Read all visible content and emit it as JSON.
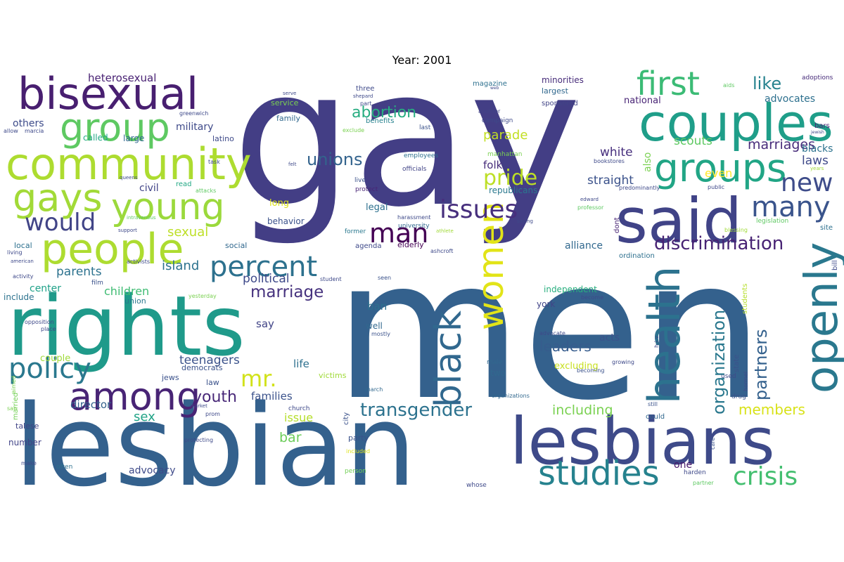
{
  "figure": {
    "title": "Year: 2001"
  },
  "chart_data": {
    "type": "wordcloud",
    "title": "Year: 2001",
    "colormap": "viridis",
    "background": "#ffffff",
    "words": [
      {
        "text": "gay",
        "color": "#433e85"
      },
      {
        "text": "men",
        "color": "#34618d"
      },
      {
        "text": "lesbian",
        "color": "#34618d"
      },
      {
        "text": "rights",
        "color": "#1f9a8a"
      },
      {
        "text": "lesbians",
        "color": "#3e4a89"
      },
      {
        "text": "said",
        "color": "#404387"
      },
      {
        "text": "couples",
        "color": "#1f9e89"
      },
      {
        "text": "community",
        "color": "#addc30"
      },
      {
        "text": "bisexual",
        "color": "#481f70"
      },
      {
        "text": "people",
        "color": "#addc30"
      },
      {
        "text": "among",
        "color": "#482475"
      },
      {
        "text": "openly",
        "color": "#2a788e"
      },
      {
        "text": "health",
        "color": "#2c728e"
      },
      {
        "text": "gays",
        "color": "#a2da37"
      },
      {
        "text": "groups",
        "color": "#21a585"
      },
      {
        "text": "group",
        "color": "#5ec962"
      },
      {
        "text": "young",
        "color": "#9bd93c"
      },
      {
        "text": "black",
        "color": "#31688e"
      },
      {
        "text": "women",
        "color": "#e2e418"
      },
      {
        "text": "studies",
        "color": "#26828e"
      },
      {
        "text": "first",
        "color": "#3bbb75"
      },
      {
        "text": "policy",
        "color": "#2a788e"
      },
      {
        "text": "percent",
        "color": "#2d718e"
      },
      {
        "text": "issues",
        "color": "#472f7d"
      },
      {
        "text": "man",
        "color": "#440154"
      },
      {
        "text": "many",
        "color": "#3a548c"
      },
      {
        "text": "new",
        "color": "#3e4c8a"
      },
      {
        "text": "crisis",
        "color": "#44bf70"
      },
      {
        "text": "would",
        "color": "#414487"
      },
      {
        "text": "mr.",
        "color": "#d2e21b"
      },
      {
        "text": "transgender",
        "color": "#2c728e"
      },
      {
        "text": "discrimination",
        "color": "#482374"
      },
      {
        "text": "pride",
        "color": "#bddf26"
      },
      {
        "text": "unions",
        "color": "#33638d"
      },
      {
        "text": "abortion",
        "color": "#27ad81"
      },
      {
        "text": "marriage",
        "color": "#46327e"
      },
      {
        "text": "organization",
        "color": "#2a788e"
      },
      {
        "text": "partners",
        "color": "#34618d"
      },
      {
        "text": "like",
        "color": "#26828e"
      },
      {
        "text": "members",
        "color": "#d8e219"
      },
      {
        "text": "youth",
        "color": "#482878"
      },
      {
        "text": "leaders",
        "color": "#365c8d"
      },
      {
        "text": "including",
        "color": "#7ad151"
      },
      {
        "text": "marriages",
        "color": "#472c7a"
      },
      {
        "text": "laws",
        "color": "#3e4989"
      },
      {
        "text": "scouts",
        "color": "#5ec962"
      },
      {
        "text": "parade",
        "color": "#c2df23"
      },
      {
        "text": "straight",
        "color": "#3b528b"
      },
      {
        "text": "sexual",
        "color": "#bddf26"
      },
      {
        "text": "children",
        "color": "#3fbc73"
      },
      {
        "text": "parents",
        "color": "#2c728e"
      },
      {
        "text": "political",
        "color": "#3e4989"
      },
      {
        "text": "white",
        "color": "#472f7d"
      },
      {
        "text": "sex",
        "color": "#20a386"
      },
      {
        "text": "center",
        "color": "#1fa188"
      },
      {
        "text": "island",
        "color": "#2c728e"
      },
      {
        "text": "director",
        "color": "#34618d"
      },
      {
        "text": "bar",
        "color": "#6ccd5a"
      },
      {
        "text": "teenagers",
        "color": "#3b528b"
      },
      {
        "text": "even",
        "color": "#fde725"
      },
      {
        "text": "others",
        "color": "#3e4c8a"
      },
      {
        "text": "heterosexual",
        "color": "#482173"
      },
      {
        "text": "military",
        "color": "#3e4989"
      },
      {
        "text": "civil",
        "color": "#414487"
      },
      {
        "text": "families",
        "color": "#3b528b"
      },
      {
        "text": "issue",
        "color": "#b5de2b"
      },
      {
        "text": "ban",
        "color": "#2d708e"
      },
      {
        "text": "say",
        "color": "#414487"
      },
      {
        "text": "life",
        "color": "#2d708e"
      },
      {
        "text": "folk",
        "color": "#472d7b"
      },
      {
        "text": "blacks",
        "color": "#2c728e"
      },
      {
        "text": "advocates",
        "color": "#2d708e"
      },
      {
        "text": "acts",
        "color": "#3b528b"
      },
      {
        "text": "alliance",
        "color": "#31688e"
      },
      {
        "text": "independent",
        "color": "#29af7f"
      },
      {
        "text": "excluding",
        "color": "#c8e020"
      },
      {
        "text": "advocacy",
        "color": "#3e4a89"
      },
      {
        "text": "couple",
        "color": "#a0da39"
      },
      {
        "text": "one",
        "color": "#481769"
      },
      {
        "text": "long",
        "color": "#dde318"
      },
      {
        "text": "legal",
        "color": "#2d708e"
      },
      {
        "text": "behavior",
        "color": "#3b528b"
      },
      {
        "text": "also",
        "color": "#7ad151"
      },
      {
        "text": "national",
        "color": "#482475"
      },
      {
        "text": "largest",
        "color": "#31688e"
      },
      {
        "text": "minorities",
        "color": "#472c7a"
      },
      {
        "text": "republicans",
        "color": "#2a788e"
      },
      {
        "text": "elderly",
        "color": "#440154"
      },
      {
        "text": "local",
        "color": "#2d708e"
      },
      {
        "text": "social",
        "color": "#31688e"
      },
      {
        "text": "include",
        "color": "#2c728e"
      },
      {
        "text": "union",
        "color": "#2a788e"
      },
      {
        "text": "jews",
        "color": "#3b528b"
      },
      {
        "text": "law",
        "color": "#3b528b"
      },
      {
        "text": "democrats",
        "color": "#3b528b"
      },
      {
        "text": "two",
        "color": "#31688e"
      },
      {
        "text": "party",
        "color": "#3b528b"
      },
      {
        "text": "well",
        "color": "#31688e"
      },
      {
        "text": "york",
        "color": "#414487"
      },
      {
        "text": "victims",
        "color": "#a0da39"
      },
      {
        "text": "number",
        "color": "#414487"
      },
      {
        "text": "called",
        "color": "#22a884"
      },
      {
        "text": "large",
        "color": "#31688e"
      },
      {
        "text": "latino",
        "color": "#3e4a89"
      },
      {
        "text": "read",
        "color": "#22a884"
      },
      {
        "text": "three",
        "color": "#3e4989"
      },
      {
        "text": "service",
        "color": "#7ad151"
      },
      {
        "text": "family",
        "color": "#31688e"
      },
      {
        "text": "benefits",
        "color": "#26828e"
      },
      {
        "text": "magazine",
        "color": "#2d708e"
      },
      {
        "text": "sponsored",
        "color": "#414487"
      },
      {
        "text": "last",
        "color": "#3b528b"
      },
      {
        "text": "employees",
        "color": "#2d708e"
      },
      {
        "text": "officials",
        "color": "#414487"
      },
      {
        "text": "campaign",
        "color": "#3e4989"
      },
      {
        "text": "another",
        "color": "#414487"
      },
      {
        "text": "protect",
        "color": "#482475"
      },
      {
        "text": "live",
        "color": "#3b528b"
      },
      {
        "text": "university",
        "color": "#31688e"
      },
      {
        "text": "ashcroft",
        "color": "#3e4989"
      },
      {
        "text": "agenda",
        "color": "#3e4989"
      },
      {
        "text": "former",
        "color": "#2a788e"
      },
      {
        "text": "dont",
        "color": "#482475"
      },
      {
        "text": "ordination",
        "color": "#2d708e"
      },
      {
        "text": "site",
        "color": "#2d708e"
      },
      {
        "text": "legislation",
        "color": "#5ec962"
      },
      {
        "text": "bars",
        "color": "#482475"
      },
      {
        "text": "adoptions",
        "color": "#472c7a"
      },
      {
        "text": "used",
        "color": "#3e4989"
      },
      {
        "text": "students",
        "color": "#b5de2b"
      },
      {
        "text": "state",
        "color": "#3b528b"
      },
      {
        "text": "bill",
        "color": "#3e4989"
      },
      {
        "text": "mostly",
        "color": "#3b528b"
      },
      {
        "text": "seen",
        "color": "#3b528b"
      },
      {
        "text": "march",
        "color": "#31688e"
      },
      {
        "text": "male",
        "color": "#31688e"
      },
      {
        "text": "becoming",
        "color": "#3b528b"
      },
      {
        "text": "organizations",
        "color": "#31688e"
      },
      {
        "text": "church",
        "color": "#3e4989"
      },
      {
        "text": "city",
        "color": "#3b528b"
      },
      {
        "text": "prom",
        "color": "#3e4989"
      },
      {
        "text": "protecting",
        "color": "#3e4989"
      },
      {
        "text": "included",
        "color": "#dde318"
      },
      {
        "text": "person",
        "color": "#73d056"
      },
      {
        "text": "often",
        "color": "#2d708e"
      },
      {
        "text": "whose",
        "color": "#3e4989"
      },
      {
        "text": "harden",
        "color": "#3e4989"
      },
      {
        "text": "partner",
        "color": "#5ec962"
      },
      {
        "text": "care",
        "color": "#3b528b"
      },
      {
        "text": "could",
        "color": "#31688e"
      },
      {
        "text": "still",
        "color": "#3b528b"
      },
      {
        "text": "drug",
        "color": "#3b528b"
      },
      {
        "text": "hormel",
        "color": "#3e4989"
      },
      {
        "text": "growing",
        "color": "#3e4989"
      },
      {
        "text": "h.i.v",
        "color": "#3e4989"
      },
      {
        "text": "advocate",
        "color": "#3e4989"
      },
      {
        "text": "become",
        "color": "#3e4989"
      },
      {
        "text": "talese",
        "color": "#414487"
      },
      {
        "text": "married",
        "color": "#73d056"
      },
      {
        "text": "aimed",
        "color": "#7ad151"
      },
      {
        "text": "opposition",
        "color": "#3e4989"
      },
      {
        "text": "place",
        "color": "#3e4989"
      },
      {
        "text": "activity",
        "color": "#3e4989"
      },
      {
        "text": "living",
        "color": "#3e4989"
      },
      {
        "text": "american",
        "color": "#3e4989"
      },
      {
        "text": "activists",
        "color": "#3e4989"
      },
      {
        "text": "film",
        "color": "#3b528b"
      },
      {
        "text": "student",
        "color": "#3e4989"
      },
      {
        "text": "yesterday",
        "color": "#7ad151"
      },
      {
        "text": "support",
        "color": "#3e4989"
      },
      {
        "text": "intravenous",
        "color": "#5ec962"
      },
      {
        "text": "queens",
        "color": "#3e4989"
      },
      {
        "text": "attacks",
        "color": "#5ec962"
      },
      {
        "text": "greenwich",
        "color": "#3e4989"
      },
      {
        "text": "allow",
        "color": "#3e4989"
      },
      {
        "text": "marcia",
        "color": "#3e4989"
      },
      {
        "text": "task",
        "color": "#3e4989"
      },
      {
        "text": "felt",
        "color": "#3e4989"
      },
      {
        "text": "serve",
        "color": "#3e4989"
      },
      {
        "text": "shepard",
        "color": "#3e4989"
      },
      {
        "text": "part",
        "color": "#3e4989"
      },
      {
        "text": "exclude",
        "color": "#7ad151"
      },
      {
        "text": "web",
        "color": "#3e4989"
      },
      {
        "text": "manhattan",
        "color": "#7ad151"
      },
      {
        "text": "aids",
        "color": "#5ec962"
      },
      {
        "text": "bookstores",
        "color": "#3e4989"
      },
      {
        "text": "predominantly",
        "color": "#3e4989"
      },
      {
        "text": "public",
        "color": "#3e4989"
      },
      {
        "text": "edward",
        "color": "#3e4989"
      },
      {
        "text": "professor",
        "color": "#5ec962"
      },
      {
        "text": "years",
        "color": "#a0da39"
      },
      {
        "text": "jewish",
        "color": "#3e4989"
      },
      {
        "text": "saying",
        "color": "#3e4989"
      },
      {
        "text": "harassment",
        "color": "#3e4989"
      },
      {
        "text": "athlete",
        "color": "#a0da39"
      },
      {
        "text": "blessing",
        "color": "#a0da39"
      },
      {
        "text": "san",
        "color": "#7ad151"
      },
      {
        "text": "market",
        "color": "#3e4989"
      },
      {
        "text": "make",
        "color": "#3e4989"
      }
    ]
  }
}
